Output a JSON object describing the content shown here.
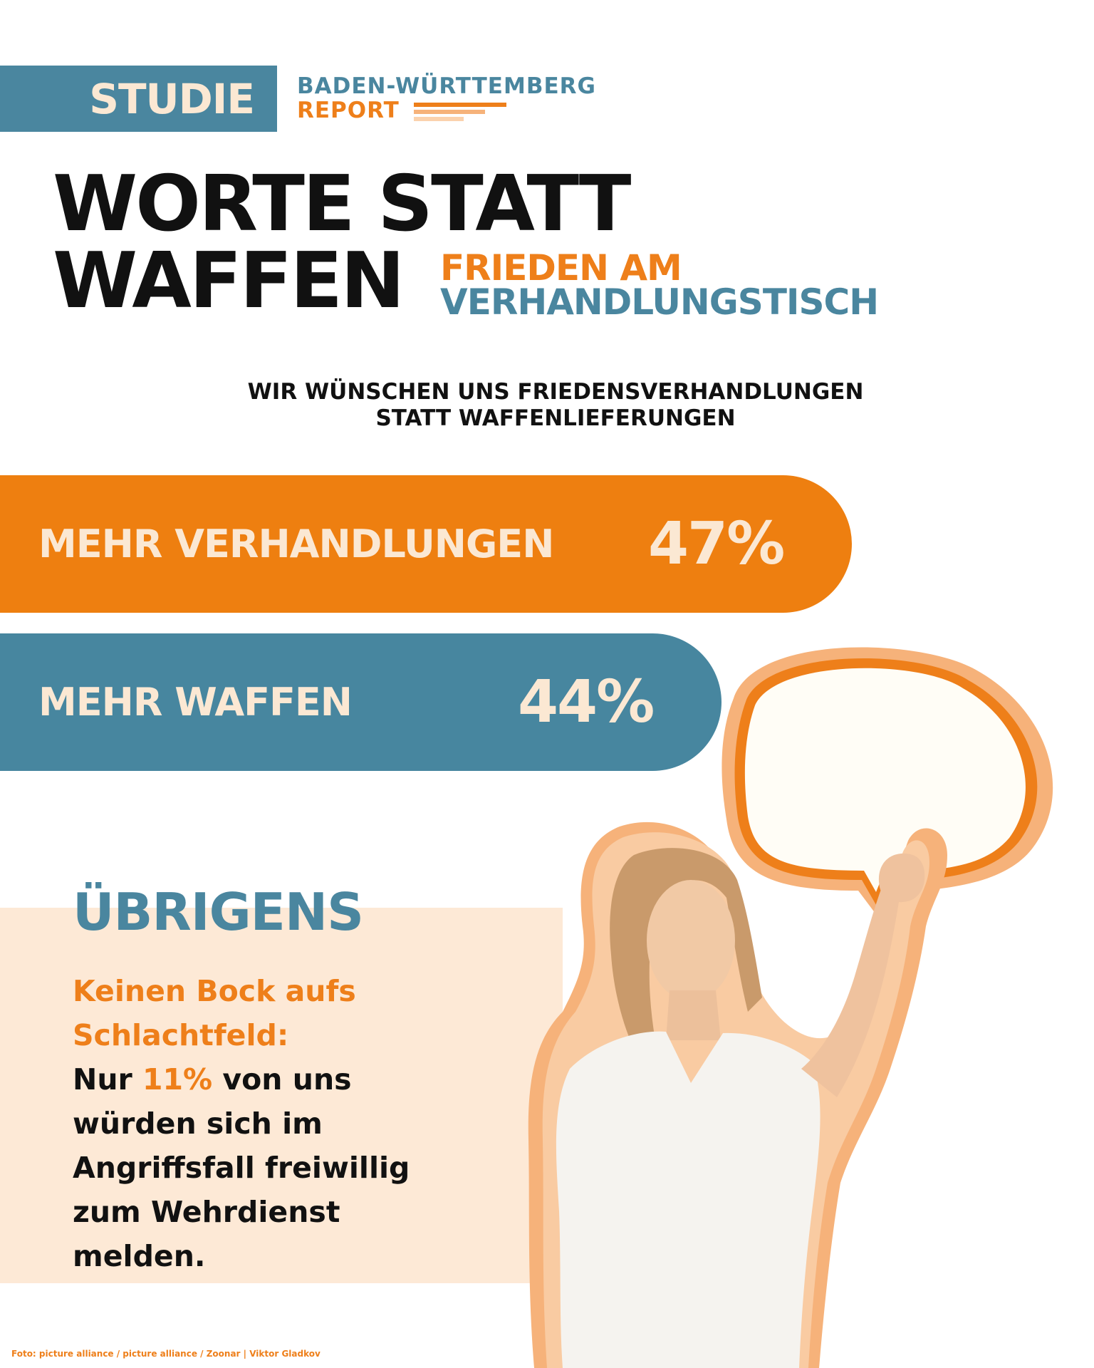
{
  "header": {
    "tag": "STUDIE",
    "report_line1": "BADEN-WÜRTTEMBERG",
    "report_line2": "REPORT"
  },
  "title": {
    "line1": "WORTE STATT",
    "line2": "WAFFEN",
    "subtitle_line1": "FRIEDEN AM",
    "subtitle_line2": "VERHANDLUNGSTISCH"
  },
  "question": {
    "line1": "WIR WÜNSCHEN UNS FRIEDENSVERHANDLUNGEN",
    "line2": "STATT WAFFENLIEFERUNGEN"
  },
  "results": [
    {
      "label": "MEHR VERHANDLUNGEN",
      "value_text": "47%",
      "value": 47,
      "color": "#ee7f10"
    },
    {
      "label": "MEHR WAFFEN",
      "value_text": "44%",
      "value": 44,
      "color": "#47869f"
    }
  ],
  "info": {
    "heading": "ÜBRIGENS",
    "highlight_line1": "Keinen Bock aufs",
    "highlight_line2": "Schlachtfeld:",
    "text_prefix": "Nur ",
    "percent": "11%",
    "text_suffix": " von uns",
    "text_line2": "würden sich im",
    "text_line3": "Angriffsfall freiwillig",
    "text_line4": "zum Wehrdienst",
    "text_line5": "melden."
  },
  "credit": "Foto: picture alliance / picture alliance / Zoonar | Viktor Gladkov",
  "colors": {
    "orange": "#ee7f1a",
    "blue": "#4a869f",
    "cream": "#fbe8d3",
    "light_peach": "#fde9d6",
    "black": "#111111"
  },
  "illustration": {
    "subject": "woman holding empty speech bubble",
    "icon": "speech-bubble-icon"
  }
}
